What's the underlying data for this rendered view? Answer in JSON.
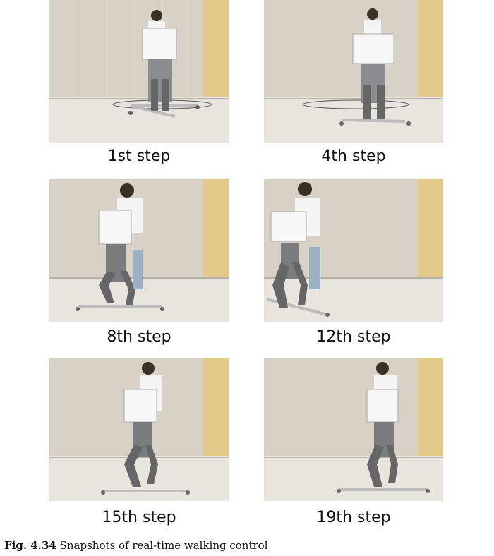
{
  "figure": {
    "panels": [
      {
        "label": "1st step",
        "icon": "robot-walking-photo"
      },
      {
        "label": "4th step",
        "icon": "robot-walking-photo"
      },
      {
        "label": "8th step",
        "icon": "robot-walking-photo"
      },
      {
        "label": "12th step",
        "icon": "robot-walking-photo"
      },
      {
        "label": "15th step",
        "icon": "robot-walking-photo"
      },
      {
        "label": "19th step",
        "icon": "robot-walking-photo"
      }
    ],
    "caption": {
      "number": "Fig. 4.34",
      "text": "Snapshots of real-time walking control"
    }
  },
  "colors": {
    "wall": "#d8d2c6",
    "floor": "#e8e4de",
    "curtain": "#e3c98a",
    "robot": "#f2f2f2",
    "legs": "#7a7c80"
  }
}
